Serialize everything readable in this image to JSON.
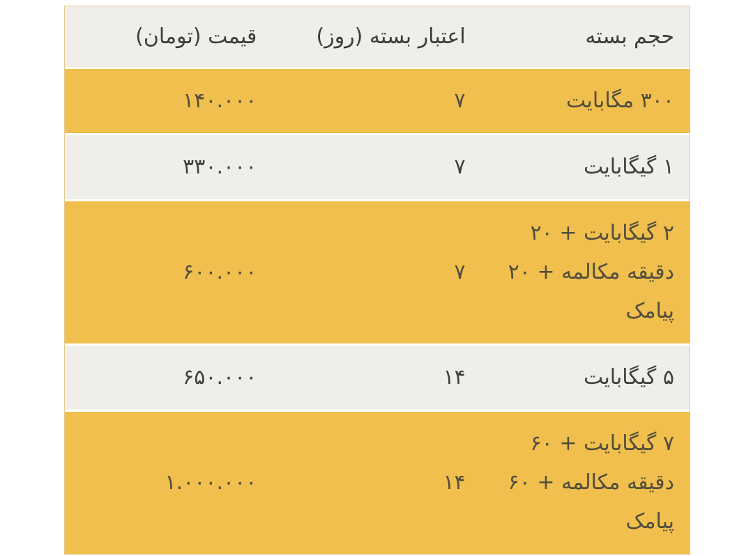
{
  "table": {
    "name": "internet-package-pricing-table",
    "direction": "rtl",
    "columns": [
      {
        "key": "volume",
        "label": "حجم بسته"
      },
      {
        "key": "validity",
        "label": "اعتبار بسته (روز)"
      },
      {
        "key": "price",
        "label": "قیمت (تومان)"
      }
    ],
    "rows": [
      {
        "volume": "۳۰۰ مگابایت",
        "validity": "۷",
        "price": "۱۴۰.۰۰۰"
      },
      {
        "volume": "۱ گیگابایت",
        "validity": "۷",
        "price": "۳۳۰.۰۰۰"
      },
      {
        "volume": "۲ گیگابایت + ۲۰ دقیقه مکالمه + ۲۰ پیامک",
        "validity": "۷",
        "price": "۶۰۰.۰۰۰"
      },
      {
        "volume": "۵ گیگابایت",
        "validity": "۱۴",
        "price": "۶۵۰.۰۰۰"
      },
      {
        "volume": "۷ گیگابایت + ۶۰ دقیقه مکالمه + ۶۰ پیامک",
        "validity": "۱۴",
        "price": "۱.۰۰۰.۰۰۰"
      }
    ],
    "row_styles": [
      "yellow",
      "gray",
      "yellow",
      "gray",
      "yellow"
    ],
    "colors": {
      "row_yellow": "#F0BF4D",
      "row_gray": "#F0EEEB",
      "table_border": "#E5C98E",
      "header_text": "#3C3C3C",
      "gray_row_text": "#404040",
      "yellow_row_text": "#524D3C",
      "page_background": "#FFFFFF"
    }
  }
}
